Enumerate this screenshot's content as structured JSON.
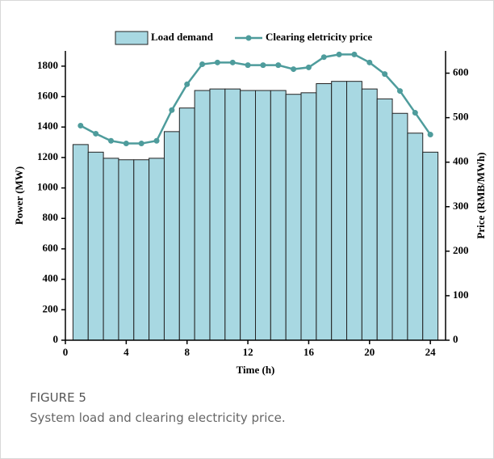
{
  "chart_data": {
    "type": "bar",
    "x": [
      1,
      2,
      3,
      4,
      5,
      6,
      7,
      8,
      9,
      10,
      11,
      12,
      13,
      14,
      15,
      16,
      17,
      18,
      19,
      20,
      21,
      22,
      23,
      24
    ],
    "series": [
      {
        "name": "Load demand",
        "color": "#a8d8e2",
        "values": [
          1285,
          1235,
          1195,
          1185,
          1185,
          1195,
          1370,
          1525,
          1640,
          1650,
          1650,
          1640,
          1640,
          1640,
          1615,
          1625,
          1685,
          1700,
          1700,
          1650,
          1585,
          1490,
          1360,
          1235
        ]
      },
      {
        "name": "Clearing eletricity price",
        "type": "line",
        "axis": "y2",
        "color": "#4e9c9c",
        "values": [
          482,
          464,
          448,
          442,
          442,
          448,
          517,
          575,
          620,
          624,
          624,
          618,
          618,
          618,
          609,
          613,
          636,
          642,
          642,
          624,
          598,
          560,
          511,
          462
        ]
      }
    ],
    "xlabel": "Time (h)",
    "ylabel": "Power (MW)",
    "y2label": "Price (RMB/MWh)",
    "xlim": [
      0,
      25
    ],
    "xticks": [
      0,
      4,
      8,
      12,
      16,
      20,
      24
    ],
    "ylim": [
      0,
      1900
    ],
    "yticks": [
      0,
      200,
      400,
      600,
      800,
      1000,
      1200,
      1400,
      1600,
      1800
    ],
    "y2lim": [
      0,
      650
    ],
    "y2ticks": [
      0,
      100,
      200,
      300,
      400,
      500,
      600
    ],
    "legend": "top"
  },
  "figure": {
    "label": "FIGURE 5",
    "caption": "System load and clearing electricity price."
  }
}
